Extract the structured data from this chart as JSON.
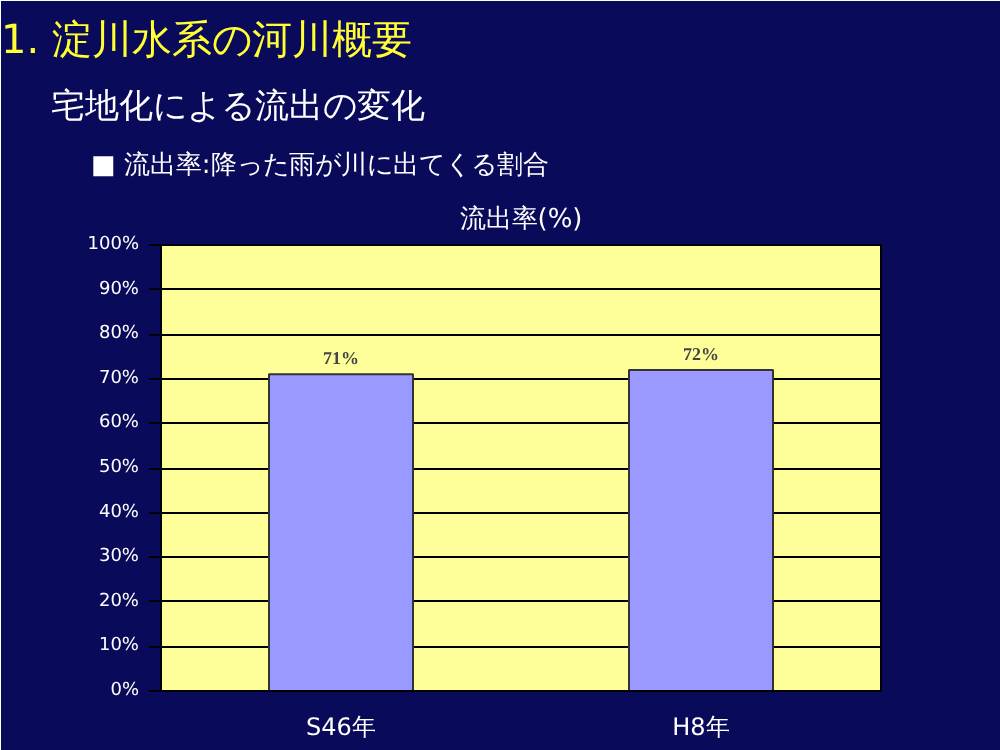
{
  "chart_data": {
    "type": "bar",
    "title": "流出率(%)",
    "annotations": [
      "1. 淀川水系の河川概要",
      "宅地化による流出の変化",
      "■ 流出率:降った雨が川に出てくる割合"
    ],
    "categories": [
      "S46年",
      "H8年"
    ],
    "series": [
      {
        "color": "#9999ff",
        "values": [
          71,
          72
        ]
      }
    ],
    "value_labels": [
      "71%",
      "72%"
    ],
    "ylim": [
      0,
      100
    ],
    "yticks": [
      {
        "value": 0,
        "label": "0%"
      },
      {
        "value": 10,
        "label": "10%"
      },
      {
        "value": 20,
        "label": "20%"
      },
      {
        "value": 30,
        "label": "30%"
      },
      {
        "value": 40,
        "label": "40%"
      },
      {
        "value": 50,
        "label": "50%"
      },
      {
        "value": 60,
        "label": "60%"
      },
      {
        "value": 70,
        "label": "70%"
      },
      {
        "value": 80,
        "label": "80%"
      },
      {
        "value": 90,
        "label": "90%"
      },
      {
        "value": 100,
        "label": "100%"
      }
    ],
    "grid": "y"
  }
}
